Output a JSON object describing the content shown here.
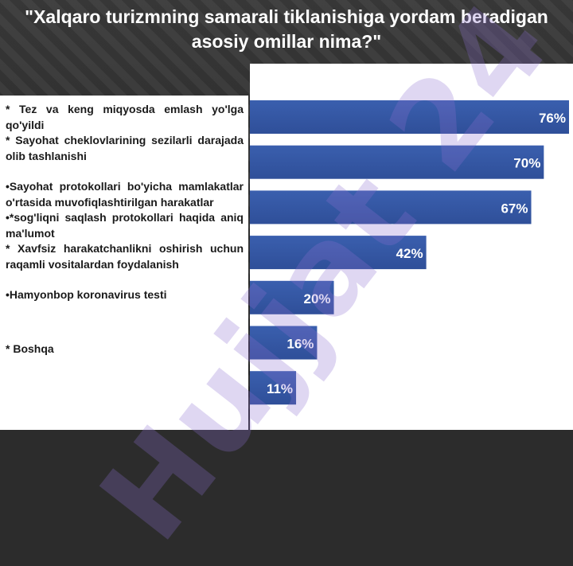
{
  "slide": {
    "title": "\"Xalqaro turizmning samarali tiklanishiga yordam beradigan asosiy omillar nima?\"",
    "items": [
      "* Tez va keng miqyosda emlash yo'lga qo'yildi",
      "* Sayohat cheklovlarining sezilarli darajada olib tashlanishi",
      "•Sayohat protokollari bo'yicha mamlakatlar o'rtasida muvofiqlashtirilgan harakatlar",
      "•*sog'liqni saqlash protokollari haqida aniq ma'lumot",
      "* Xavfsiz harakatchanlikni oshirish uchun raqamli vositalardan foydalanish",
      "•Hamyonbop koronavirus testi",
      "* Boshqa"
    ],
    "watermark": "Hujjat 24"
  },
  "colors": {
    "bar": "#2f4f99",
    "bar_top": "#3a5fae",
    "label": "#ffffff"
  },
  "chart_data": {
    "type": "bar",
    "orientation": "horizontal",
    "values": [
      76,
      70,
      67,
      42,
      20,
      16,
      11
    ],
    "labels": [
      "76%",
      "70%",
      "67%",
      "42%",
      "20%",
      "16%",
      "11%"
    ],
    "xlim": [
      0,
      76
    ],
    "grid": false
  }
}
